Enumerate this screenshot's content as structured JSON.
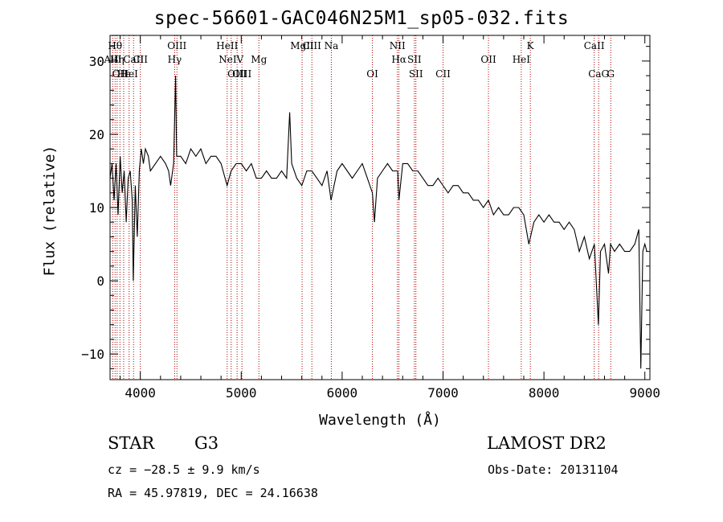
{
  "chart_data": {
    "type": "line",
    "title": "spec-56601-GAC046N25M1_sp05-032.fits",
    "xlabel": "Wavelength (Å)",
    "ylabel": "Flux (relative)",
    "xlim": [
      3700,
      9050
    ],
    "ylim": [
      -13.5,
      33.5
    ],
    "xticks": [
      4000,
      5000,
      6000,
      7000,
      8000,
      9000
    ],
    "yticks": [
      -10,
      0,
      10,
      20,
      30
    ],
    "x_minor_step": 200,
    "y_minor_step": 2,
    "grid": false,
    "series": [
      {
        "color": "#000000",
        "points": [
          [
            3700,
            14
          ],
          [
            3720,
            16
          ],
          [
            3740,
            11
          ],
          [
            3760,
            16
          ],
          [
            3780,
            9
          ],
          [
            3800,
            17
          ],
          [
            3820,
            12
          ],
          [
            3840,
            15
          ],
          [
            3860,
            8
          ],
          [
            3880,
            14
          ],
          [
            3900,
            15
          ],
          [
            3920,
            11
          ],
          [
            3930,
            0
          ],
          [
            3950,
            13
          ],
          [
            3970,
            6
          ],
          [
            3990,
            15
          ],
          [
            4010,
            18
          ],
          [
            4030,
            16
          ],
          [
            4050,
            18
          ],
          [
            4080,
            17
          ],
          [
            4100,
            15
          ],
          [
            4150,
            16
          ],
          [
            4200,
            17
          ],
          [
            4250,
            16
          ],
          [
            4280,
            15
          ],
          [
            4300,
            13
          ],
          [
            4330,
            16
          ],
          [
            4350,
            28
          ],
          [
            4360,
            17
          ],
          [
            4400,
            17
          ],
          [
            4450,
            16
          ],
          [
            4500,
            18
          ],
          [
            4550,
            17
          ],
          [
            4600,
            18
          ],
          [
            4650,
            16
          ],
          [
            4700,
            17
          ],
          [
            4750,
            17
          ],
          [
            4800,
            16
          ],
          [
            4860,
            13
          ],
          [
            4900,
            15
          ],
          [
            4950,
            16
          ],
          [
            5000,
            16
          ],
          [
            5050,
            15
          ],
          [
            5100,
            16
          ],
          [
            5150,
            14
          ],
          [
            5200,
            14
          ],
          [
            5250,
            15
          ],
          [
            5300,
            14
          ],
          [
            5350,
            14
          ],
          [
            5400,
            15
          ],
          [
            5450,
            14
          ],
          [
            5480,
            23
          ],
          [
            5500,
            16
          ],
          [
            5550,
            14
          ],
          [
            5600,
            13
          ],
          [
            5650,
            15
          ],
          [
            5700,
            15
          ],
          [
            5750,
            14
          ],
          [
            5800,
            13
          ],
          [
            5850,
            15
          ],
          [
            5890,
            11
          ],
          [
            5950,
            15
          ],
          [
            6000,
            16
          ],
          [
            6050,
            15
          ],
          [
            6100,
            14
          ],
          [
            6150,
            15
          ],
          [
            6200,
            16
          ],
          [
            6250,
            14
          ],
          [
            6300,
            12
          ],
          [
            6320,
            8
          ],
          [
            6350,
            14
          ],
          [
            6400,
            15
          ],
          [
            6450,
            16
          ],
          [
            6500,
            15
          ],
          [
            6550,
            15
          ],
          [
            6563,
            11
          ],
          [
            6600,
            16
          ],
          [
            6650,
            16
          ],
          [
            6700,
            15
          ],
          [
            6750,
            15
          ],
          [
            6800,
            14
          ],
          [
            6850,
            13
          ],
          [
            6900,
            13
          ],
          [
            6950,
            14
          ],
          [
            7000,
            13
          ],
          [
            7050,
            12
          ],
          [
            7100,
            13
          ],
          [
            7150,
            13
          ],
          [
            7200,
            12
          ],
          [
            7250,
            12
          ],
          [
            7300,
            11
          ],
          [
            7350,
            11
          ],
          [
            7400,
            10
          ],
          [
            7450,
            11
          ],
          [
            7500,
            9
          ],
          [
            7550,
            10
          ],
          [
            7600,
            9
          ],
          [
            7650,
            9
          ],
          [
            7700,
            10
          ],
          [
            7750,
            10
          ],
          [
            7800,
            9
          ],
          [
            7850,
            5
          ],
          [
            7900,
            8
          ],
          [
            7950,
            9
          ],
          [
            8000,
            8
          ],
          [
            8050,
            9
          ],
          [
            8100,
            8
          ],
          [
            8150,
            8
          ],
          [
            8200,
            7
          ],
          [
            8250,
            8
          ],
          [
            8300,
            7
          ],
          [
            8350,
            4
          ],
          [
            8400,
            6
          ],
          [
            8450,
            3
          ],
          [
            8500,
            5
          ],
          [
            8540,
            -6
          ],
          [
            8560,
            4
          ],
          [
            8600,
            5
          ],
          [
            8640,
            1
          ],
          [
            8660,
            5
          ],
          [
            8700,
            4
          ],
          [
            8750,
            5
          ],
          [
            8800,
            4
          ],
          [
            8850,
            4
          ],
          [
            8900,
            5
          ],
          [
            8940,
            7
          ],
          [
            8960,
            -12
          ],
          [
            8980,
            4
          ],
          [
            9000,
            5
          ],
          [
            9020,
            4
          ]
        ]
      }
    ],
    "line_markers": [
      {
        "x": 3727,
        "label": "AlII",
        "row": 2
      },
      {
        "x": 3750,
        "label": "Hθ",
        "row": 1
      },
      {
        "x": 3770,
        "label": "Hη",
        "row": 2
      },
      {
        "x": 3798,
        "label": "OII",
        "row": 3
      },
      {
        "x": 3835,
        "label": "Hε",
        "row": 3
      },
      {
        "x": 3889,
        "label": "HeI",
        "row": 3
      },
      {
        "x": 3933,
        "label": "CaII",
        "row": 2
      },
      {
        "x": 4000,
        "label": "CII",
        "row": 2
      },
      {
        "x": 4340,
        "label": "Hγ",
        "row": 2
      },
      {
        "x": 4363,
        "label": "OIII",
        "row": 1
      },
      {
        "x": 4861,
        "label": "HeII",
        "row": 1
      },
      {
        "x": 4900,
        "label": "NeIV",
        "row": 2
      },
      {
        "x": 4959,
        "label": "OIII",
        "row": 3
      },
      {
        "x": 5007,
        "label": "OIII",
        "row": 3
      },
      {
        "x": 5175,
        "label": "Mg",
        "row": 2
      },
      {
        "x": 5603,
        "label": "MgII",
        "row": 1
      },
      {
        "x": 5700,
        "label": "CIII",
        "row": 1
      },
      {
        "x": 5893,
        "label": "Na",
        "row": 1
      },
      {
        "x": 6300,
        "label": "OI",
        "row": 3
      },
      {
        "x": 6548,
        "label": "NII",
        "row": 1
      },
      {
        "x": 6563,
        "label": "Hα",
        "row": 2
      },
      {
        "x": 6716,
        "label": "SII",
        "row": 2
      },
      {
        "x": 6731,
        "label": "SII",
        "row": 3
      },
      {
        "x": 7000,
        "label": "CII",
        "row": 3
      },
      {
        "x": 7450,
        "label": "OII",
        "row": 2
      },
      {
        "x": 7775,
        "label": "HeI",
        "row": 2
      },
      {
        "x": 7865,
        "label": "K",
        "row": 1
      },
      {
        "x": 8498,
        "label": "CaII",
        "row": 1
      },
      {
        "x": 8542,
        "label": "CaG",
        "row": 3
      },
      {
        "x": 8662,
        "label": "G",
        "row": 3
      }
    ]
  },
  "info": {
    "class_label": "STAR",
    "subclass_label": "G3",
    "survey_label": "LAMOST DR2",
    "redshift_text": "cz = −28.5 ± 9.9 km/s",
    "obs_date_text": "Obs-Date: 20131104",
    "coords_text": "RA =  45.97819, DEC =  24.16638"
  }
}
